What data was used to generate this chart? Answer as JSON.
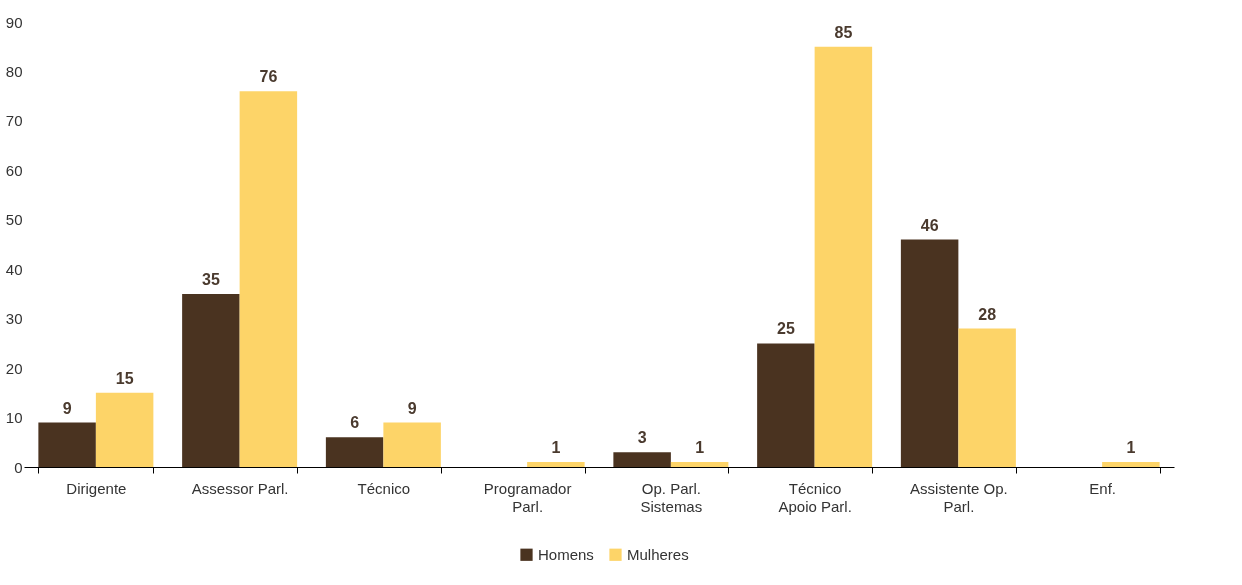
{
  "chart_data": {
    "type": "bar",
    "categories": [
      "Dirigente",
      "Assessor Parl.",
      "Técnico",
      "Programador\nParl.",
      "Op. Parl.\nSistemas",
      "Técnico\nApoio Parl.",
      "Assistente Op.\nParl.",
      "Enf."
    ],
    "series": [
      {
        "name": "Homens",
        "color": "#4a3320",
        "values": [
          9,
          35,
          6,
          null,
          3,
          25,
          46,
          null
        ]
      },
      {
        "name": "Mulheres",
        "color": "#fdd468",
        "values": [
          15,
          76,
          9,
          1,
          1,
          85,
          28,
          1
        ]
      }
    ],
    "ylim": [
      0,
      90
    ],
    "yticks": [
      0,
      10,
      20,
      30,
      40,
      50,
      60,
      70,
      80,
      90
    ],
    "data_labels": true,
    "legend": "bottom",
    "grid": false
  }
}
